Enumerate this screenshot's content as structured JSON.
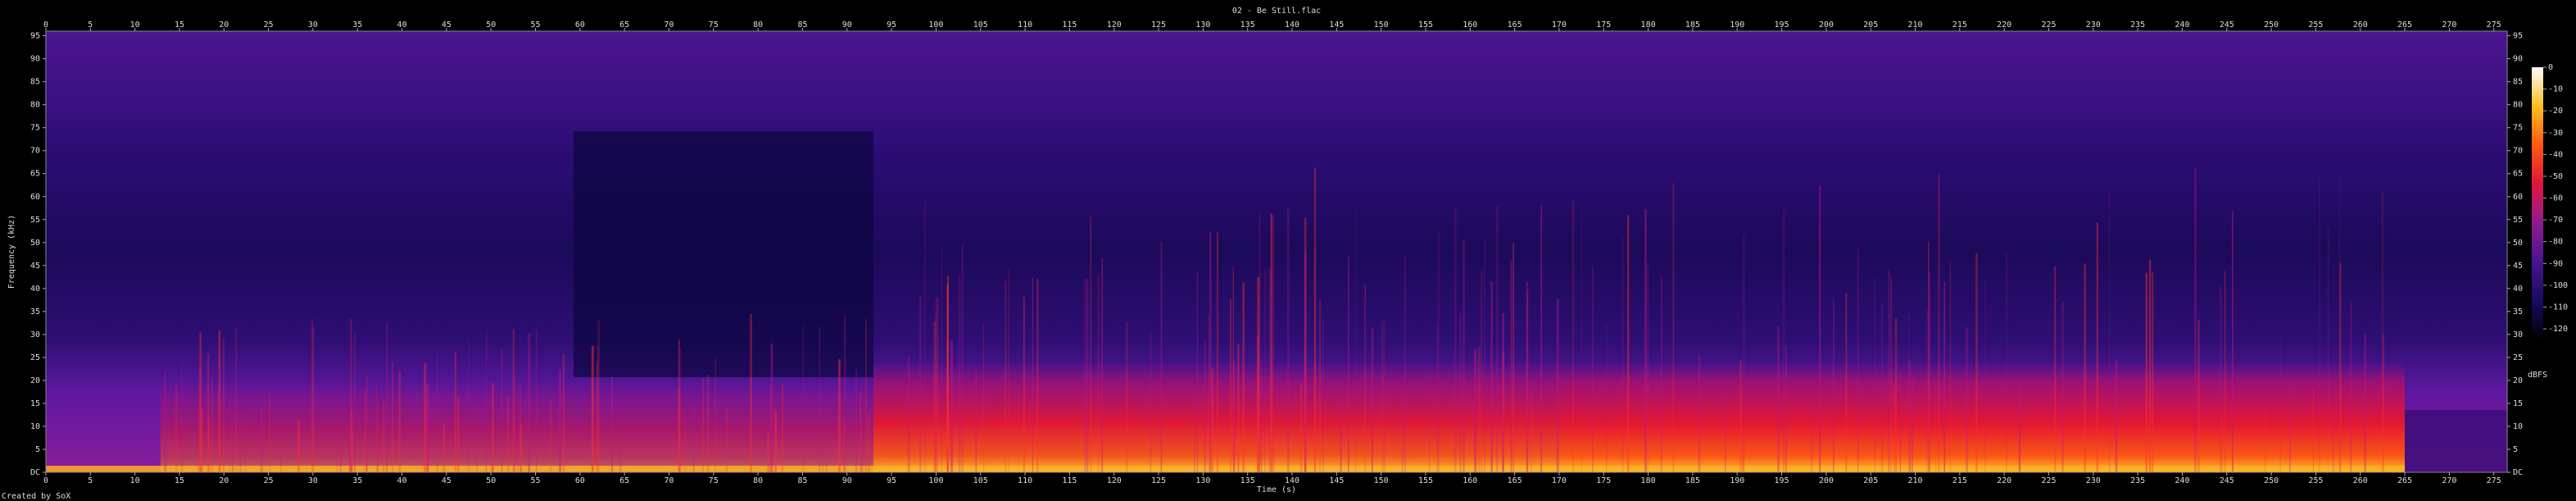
{
  "chart_data": {
    "type": "spectrogram",
    "title": "02 - Be Still.flac",
    "x_label": "Time (s)",
    "y_label": "Frequency (kHz)",
    "xlim": [
      0,
      276.5
    ],
    "xticks": [
      0,
      5,
      10,
      15,
      20,
      25,
      30,
      35,
      40,
      45,
      50,
      55,
      60,
      65,
      70,
      75,
      80,
      85,
      90,
      95,
      100,
      105,
      110,
      115,
      120,
      125,
      130,
      135,
      140,
      145,
      150,
      155,
      160,
      165,
      170,
      175,
      180,
      185,
      190,
      195,
      200,
      205,
      210,
      215,
      220,
      225,
      230,
      235,
      240,
      245,
      250,
      255,
      260,
      265,
      270,
      275
    ],
    "ylim": [
      0,
      96
    ],
    "yticks": [
      {
        "value": 0,
        "label": "DC"
      },
      5,
      10,
      15,
      20,
      25,
      30,
      35,
      40,
      45,
      50,
      55,
      60,
      65,
      70,
      75,
      80,
      85,
      90,
      95
    ],
    "colorbar_label": "dBFS",
    "clim": [
      -126,
      0
    ],
    "cticks": [
      0,
      -10,
      -20,
      -30,
      -40,
      -50,
      -60,
      -70,
      -80,
      -90,
      -100,
      -110,
      -120
    ],
    "credit": "Created by SoX"
  }
}
